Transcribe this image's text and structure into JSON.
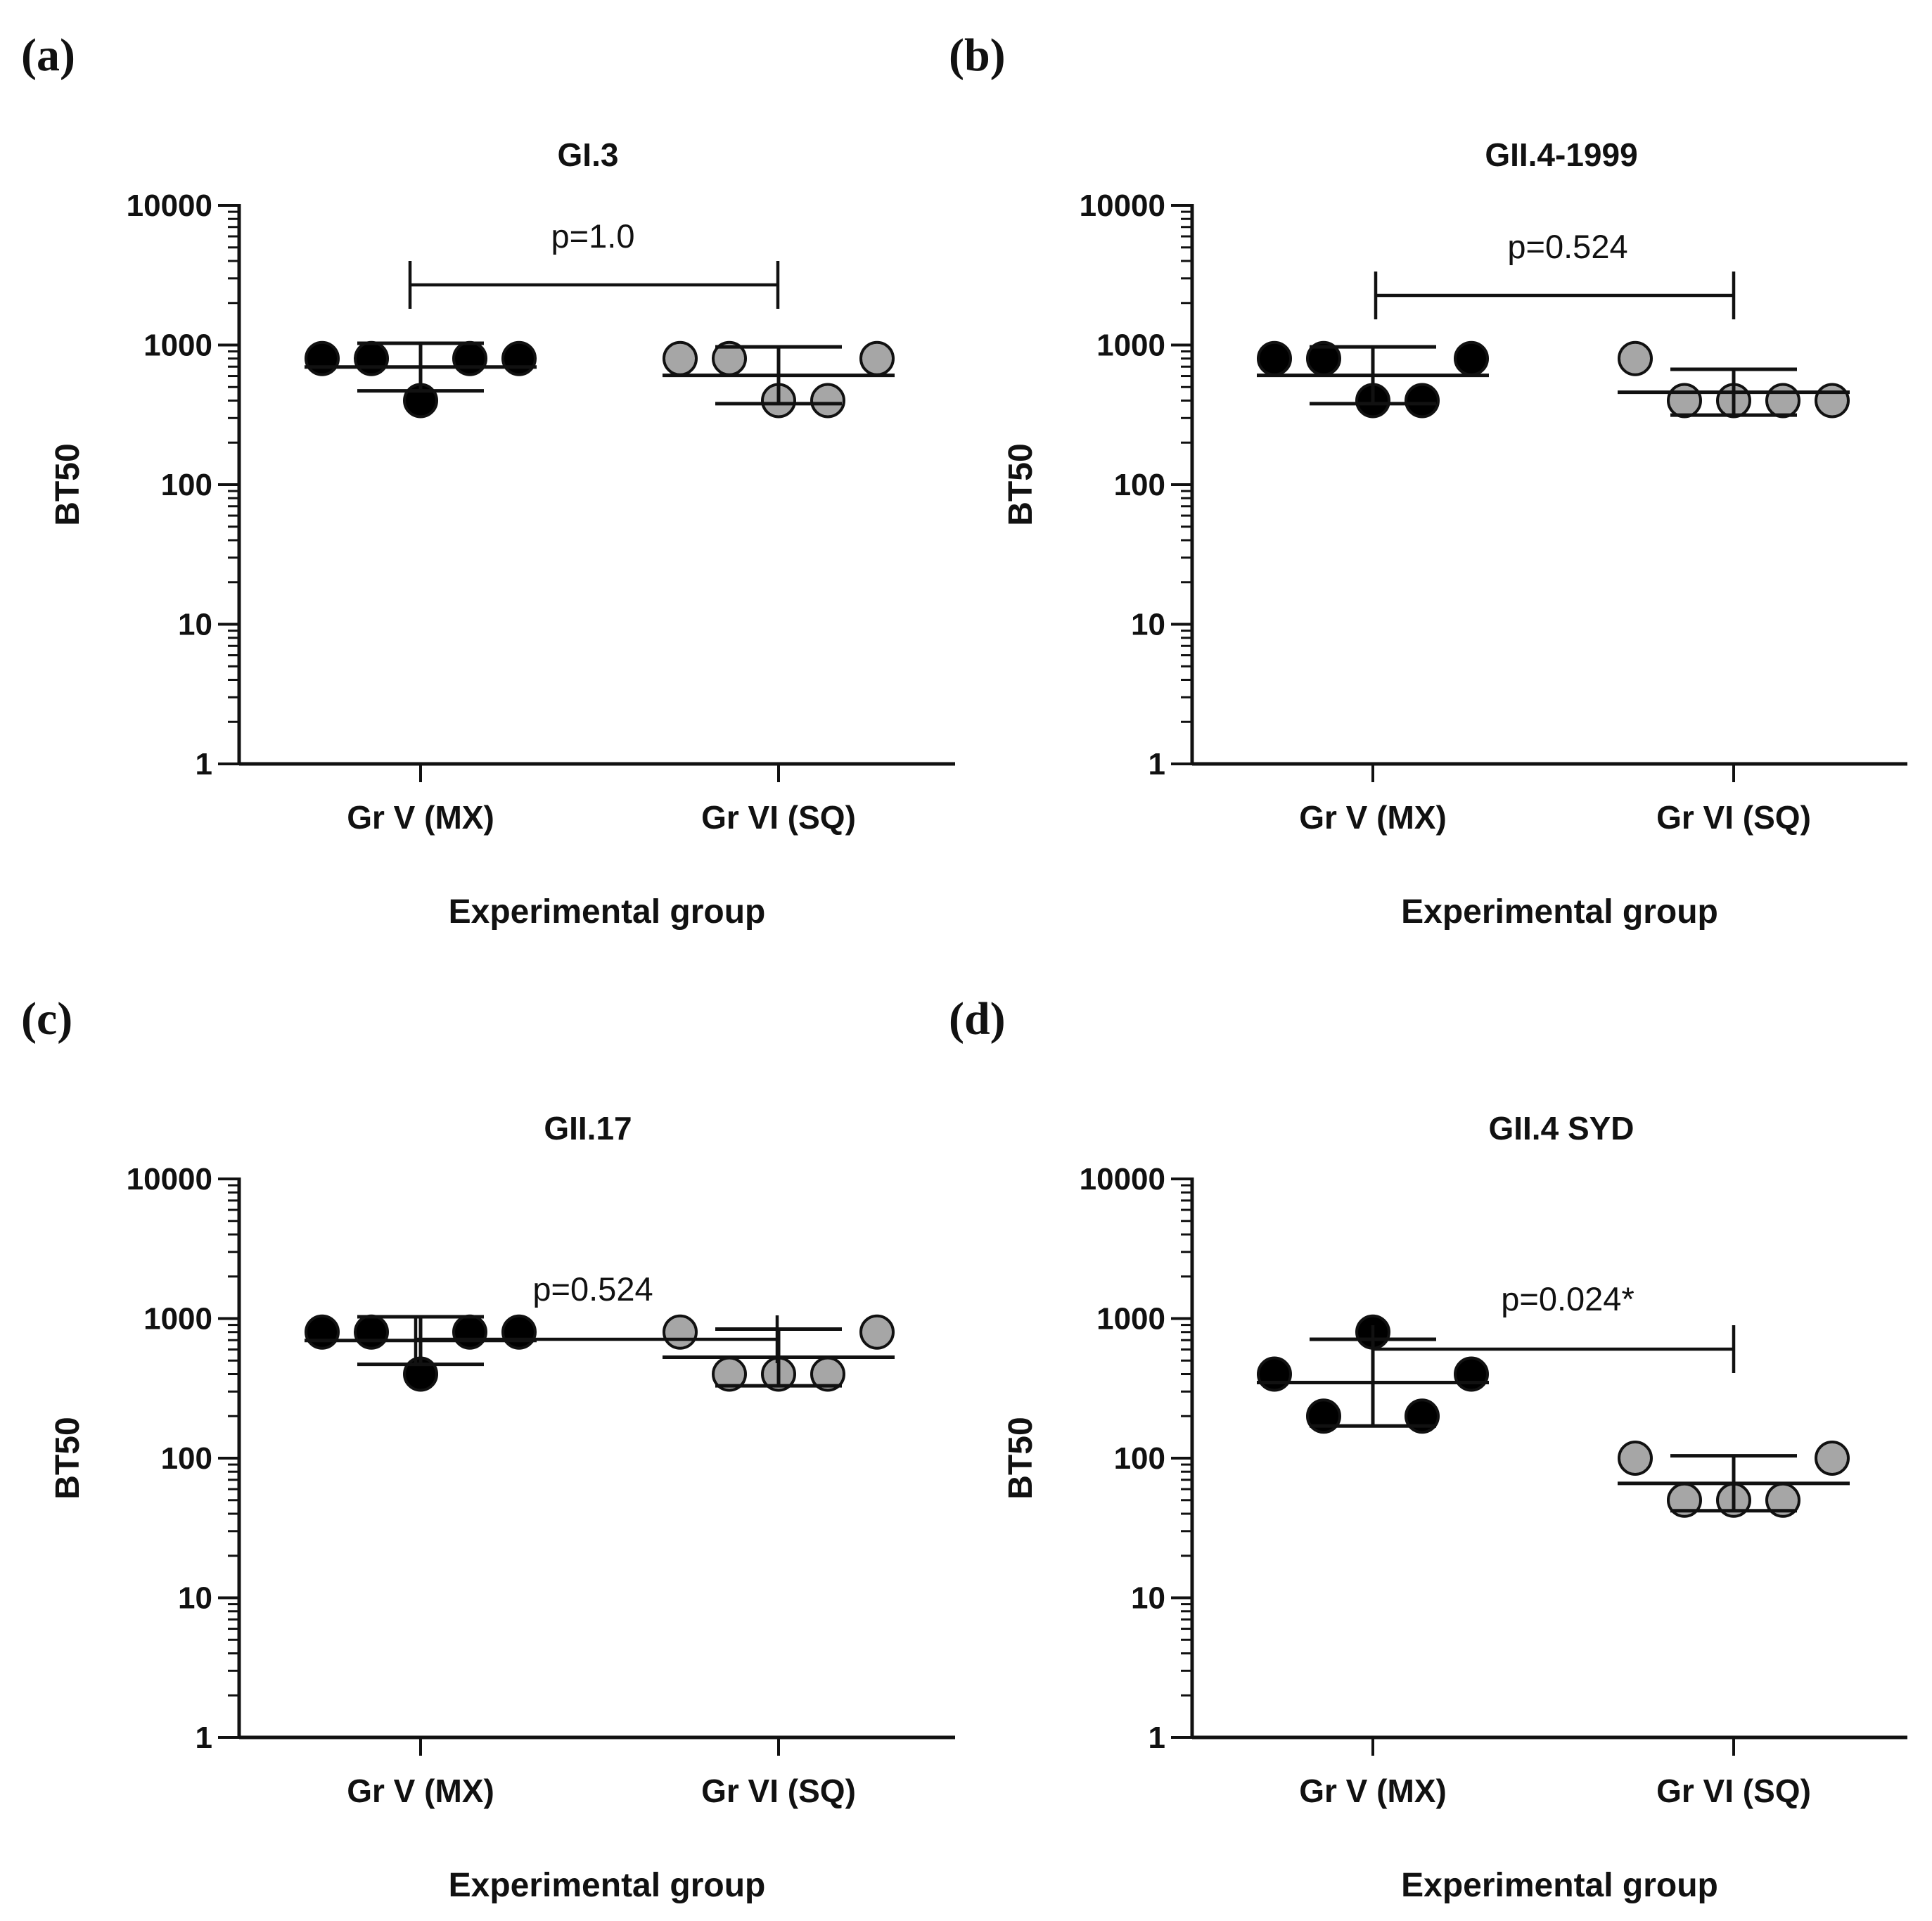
{
  "colors": {
    "group_v_fill": "#000000",
    "group_vi_fill": "#a6a6a6",
    "line": "#111111"
  },
  "chart_data": [
    {
      "panel": "(a)",
      "type": "scatter",
      "title": "GI.3",
      "xlabel": "Experimental group",
      "ylabel": "BT50",
      "yscale": "log",
      "ylim": [
        1,
        10000
      ],
      "yticks": [
        "1",
        "10",
        "100",
        "1000",
        "10000"
      ],
      "categories": [
        "Gr V (MX)",
        "Gr VI (SQ)"
      ],
      "series": [
        {
          "name": "Gr V (MX)",
          "values": [
            800,
            800,
            400,
            800,
            800
          ],
          "mean": 696,
          "err_low": 470,
          "err_high": 1030
        },
        {
          "name": "Gr VI (SQ)",
          "values": [
            800,
            800,
            400,
            400,
            800
          ],
          "mean": 606,
          "err_low": 380,
          "err_high": 970
        }
      ],
      "comparison": {
        "label": "p=1.0"
      }
    },
    {
      "panel": "(b)",
      "type": "scatter",
      "title": "GII.4-1999",
      "xlabel": "Experimental group",
      "ylabel": "BT50",
      "yscale": "log",
      "ylim": [
        1,
        10000
      ],
      "yticks": [
        "1",
        "10",
        "100",
        "1000",
        "10000"
      ],
      "categories": [
        "Gr V (MX)",
        "Gr VI (SQ)"
      ],
      "series": [
        {
          "name": "Gr V (MX)",
          "values": [
            800,
            800,
            400,
            400,
            800
          ],
          "mean": 606,
          "err_low": 380,
          "err_high": 970
        },
        {
          "name": "Gr VI (SQ)",
          "values": [
            800,
            400,
            400,
            400,
            400
          ],
          "mean": 459,
          "err_low": 315,
          "err_high": 670
        }
      ],
      "comparison": {
        "label": "p=0.524"
      }
    },
    {
      "panel": "(c)",
      "type": "scatter",
      "title": "GII.17",
      "xlabel": "Experimental group",
      "ylabel": "BT50",
      "yscale": "log",
      "ylim": [
        1,
        10000
      ],
      "yticks": [
        "1",
        "10",
        "100",
        "1000",
        "10000"
      ],
      "categories": [
        "Gr V (MX)",
        "Gr VI (SQ)"
      ],
      "series": [
        {
          "name": "Gr V (MX)",
          "values": [
            800,
            800,
            400,
            800,
            800
          ],
          "mean": 696,
          "err_low": 470,
          "err_high": 1030
        },
        {
          "name": "Gr VI (SQ)",
          "values": [
            800,
            400,
            400,
            400,
            800
          ],
          "mean": 528,
          "err_low": 330,
          "err_high": 840
        }
      ],
      "comparison": {
        "label": "p=0.524"
      }
    },
    {
      "panel": "(d)",
      "type": "scatter",
      "title": "GII.4 SYD",
      "xlabel": "Experimental group",
      "ylabel": "BT50",
      "yscale": "log",
      "ylim": [
        1,
        10000
      ],
      "yticks": [
        "1",
        "10",
        "100",
        "1000",
        "10000"
      ],
      "categories": [
        "Gr V (MX)",
        "Gr VI (SQ)"
      ],
      "series": [
        {
          "name": "Gr V (MX)",
          "values": [
            400,
            200,
            800,
            200,
            400
          ],
          "mean": 348,
          "err_low": 170,
          "err_high": 710
        },
        {
          "name": "Gr VI (SQ)",
          "values": [
            100,
            50,
            50,
            50,
            100
          ],
          "mean": 66,
          "err_low": 42,
          "err_high": 104
        }
      ],
      "comparison": {
        "label": "p=0.024*"
      }
    }
  ]
}
